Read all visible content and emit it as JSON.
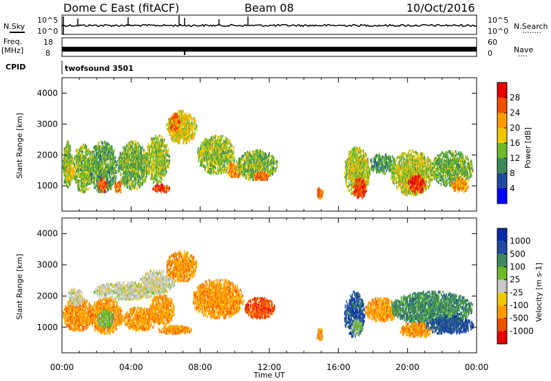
{
  "header": {
    "station": "Dome C East (fitACF)",
    "beam": "Beam 08",
    "date": "10/Oct/2016"
  },
  "top_panels": {
    "nsky_label": "N.Sky",
    "nsearch_label": "N.Search",
    "nsearch_dots": "........",
    "noise_ticks": [
      "10^5",
      "10^0"
    ],
    "freq_label_1": "Freq.",
    "freq_label_2": "[MHz]",
    "freq_ticks": [
      "18",
      "8"
    ],
    "nave_label": "Nave",
    "nave_dots": "....",
    "nave_ticks": [
      "60",
      "0"
    ],
    "cpid_label": "CPID",
    "cpid_value": "twofsound 3501"
  },
  "colors": {
    "power": [
      "#0000ff",
      "#1e4aa0",
      "#3a8a5a",
      "#6aba2a",
      "#f0c800",
      "#ff9a00",
      "#f05000",
      "#e80000"
    ],
    "velocity": [
      "#e80000",
      "#f05000",
      "#ff9a00",
      "#f0c800",
      "#c8c8c8",
      "#6aba2a",
      "#3a8a5a",
      "#1e4aa0",
      "#0a2aa8"
    ],
    "frame": "#000000"
  },
  "chart_data": [
    {
      "type": "heatmap",
      "title": "Power",
      "xlabel": "Time UT",
      "ylabel": "Slant Range [km]",
      "x_ticks": [
        "00:00",
        "04:00",
        "08:00",
        "12:00",
        "16:00",
        "20:00",
        "00:00"
      ],
      "x_tick_hours": [
        0,
        4,
        8,
        12,
        16,
        20,
        24
      ],
      "xlim": [
        0,
        24
      ],
      "ylim": [
        180,
        4500
      ],
      "y_ticks": [
        1000,
        2000,
        3000,
        4000
      ],
      "colorbar": {
        "label": "Power [dB]",
        "range": [
          0,
          32
        ],
        "ticks": [
          4,
          8,
          12,
          16,
          20,
          24,
          28
        ]
      },
      "blobs": [
        {
          "t0": 0.0,
          "t1": 0.6,
          "r0": 800,
          "r1": 2400,
          "level": 14
        },
        {
          "t0": 0.6,
          "t1": 1.8,
          "r0": 700,
          "r1": 2300,
          "level": 14
        },
        {
          "t0": 1.5,
          "t1": 3.2,
          "r0": 700,
          "r1": 2400,
          "level": 12
        },
        {
          "t0": 2.0,
          "t1": 2.6,
          "r0": 700,
          "r1": 1200,
          "level": 26
        },
        {
          "t0": 3.0,
          "t1": 3.5,
          "r0": 700,
          "r1": 1100,
          "level": 24
        },
        {
          "t0": 0.2,
          "t1": 0.7,
          "r0": 1100,
          "r1": 1600,
          "level": 18
        },
        {
          "t0": 3.2,
          "t1": 5.0,
          "r0": 800,
          "r1": 2400,
          "level": 13
        },
        {
          "t0": 4.8,
          "t1": 6.2,
          "r0": 1000,
          "r1": 2600,
          "level": 15
        },
        {
          "t0": 5.2,
          "t1": 6.2,
          "r0": 700,
          "r1": 1000,
          "level": 27
        },
        {
          "t0": 6.0,
          "t1": 7.8,
          "r0": 2300,
          "r1": 3400,
          "level": 18
        },
        {
          "t0": 6.2,
          "t1": 6.8,
          "r0": 2700,
          "r1": 3300,
          "level": 24
        },
        {
          "t0": 7.8,
          "t1": 10.0,
          "r0": 1300,
          "r1": 2600,
          "level": 15
        },
        {
          "t0": 9.5,
          "t1": 10.5,
          "r0": 1200,
          "r1": 1700,
          "level": 22
        },
        {
          "t0": 10.0,
          "t1": 12.5,
          "r0": 1100,
          "r1": 2100,
          "level": 14
        },
        {
          "t0": 11.0,
          "t1": 12.0,
          "r0": 1100,
          "r1": 1400,
          "level": 24
        },
        {
          "t0": 14.7,
          "t1": 15.1,
          "r0": 500,
          "r1": 900,
          "level": 24
        },
        {
          "t0": 16.3,
          "t1": 17.8,
          "r0": 600,
          "r1": 2200,
          "level": 16
        },
        {
          "t0": 16.8,
          "t1": 17.6,
          "r0": 500,
          "r1": 1200,
          "level": 28
        },
        {
          "t0": 17.8,
          "t1": 19.3,
          "r0": 1300,
          "r1": 2000,
          "level": 11
        },
        {
          "t0": 19.0,
          "t1": 21.5,
          "r0": 600,
          "r1": 2100,
          "level": 16
        },
        {
          "t0": 20.0,
          "t1": 21.0,
          "r0": 700,
          "r1": 1300,
          "level": 28
        },
        {
          "t0": 21.3,
          "t1": 23.8,
          "r0": 900,
          "r1": 2100,
          "level": 13
        },
        {
          "t0": 22.5,
          "t1": 23.5,
          "r0": 700,
          "r1": 1200,
          "level": 22
        }
      ]
    },
    {
      "type": "heatmap",
      "title": "Velocity",
      "xlabel": "Time UT",
      "ylabel": "Slant Range [km]",
      "x_ticks": [
        "00:00",
        "04:00",
        "08:00",
        "12:00",
        "16:00",
        "20:00",
        "00:00"
      ],
      "x_tick_hours": [
        0,
        4,
        8,
        12,
        16,
        20,
        24
      ],
      "xlim": [
        0,
        24
      ],
      "ylim": [
        180,
        4500
      ],
      "y_ticks": [
        1000,
        2000,
        3000,
        4000
      ],
      "colorbar": {
        "label": "Velocity [m s-1]",
        "tick_labels": [
          "1000",
          "500",
          "100",
          "25",
          "-25",
          "-100",
          "-500",
          "-1000"
        ]
      },
      "blobs": [
        {
          "t0": 0.0,
          "t1": 1.8,
          "r0": 800,
          "r1": 1900,
          "cat": 2
        },
        {
          "t0": 0.3,
          "t1": 1.2,
          "r0": 1600,
          "r1": 2200,
          "cat": 4
        },
        {
          "t0": 1.5,
          "t1": 3.5,
          "r0": 700,
          "r1": 1900,
          "cat": 2
        },
        {
          "t0": 2.0,
          "t1": 3.0,
          "r0": 900,
          "r1": 1500,
          "cat": 5
        },
        {
          "t0": 1.8,
          "t1": 5.5,
          "r0": 1800,
          "r1": 2400,
          "cat": 4
        },
        {
          "t0": 3.5,
          "t1": 5.5,
          "r0": 800,
          "r1": 1600,
          "cat": 2
        },
        {
          "t0": 5.0,
          "t1": 6.5,
          "r0": 1000,
          "r1": 2000,
          "cat": 2
        },
        {
          "t0": 4.5,
          "t1": 6.5,
          "r0": 2000,
          "r1": 2800,
          "cat": 4
        },
        {
          "t0": 6.0,
          "t1": 7.8,
          "r0": 2400,
          "r1": 3400,
          "cat": 2
        },
        {
          "t0": 5.5,
          "t1": 7.5,
          "r0": 700,
          "r1": 1000,
          "cat": 2
        },
        {
          "t0": 7.5,
          "t1": 10.5,
          "r0": 1200,
          "r1": 2500,
          "cat": 2
        },
        {
          "t0": 10.5,
          "t1": 12.3,
          "r0": 1200,
          "r1": 1900,
          "cat": 1
        },
        {
          "t0": 14.7,
          "t1": 15.1,
          "r0": 500,
          "r1": 900,
          "cat": 2
        },
        {
          "t0": 16.3,
          "t1": 17.5,
          "r0": 600,
          "r1": 2100,
          "cat": 7
        },
        {
          "t0": 16.7,
          "t1": 17.4,
          "r0": 700,
          "r1": 1200,
          "cat": 5
        },
        {
          "t0": 17.5,
          "t1": 19.5,
          "r0": 1100,
          "r1": 1900,
          "cat": 2
        },
        {
          "t0": 19.0,
          "t1": 23.8,
          "r0": 1000,
          "r1": 2100,
          "cat": 6
        },
        {
          "t0": 19.5,
          "t1": 21.5,
          "r0": 600,
          "r1": 1100,
          "cat": 2
        },
        {
          "t0": 21.0,
          "t1": 23.8,
          "r0": 700,
          "r1": 1300,
          "cat": 7
        }
      ]
    }
  ]
}
